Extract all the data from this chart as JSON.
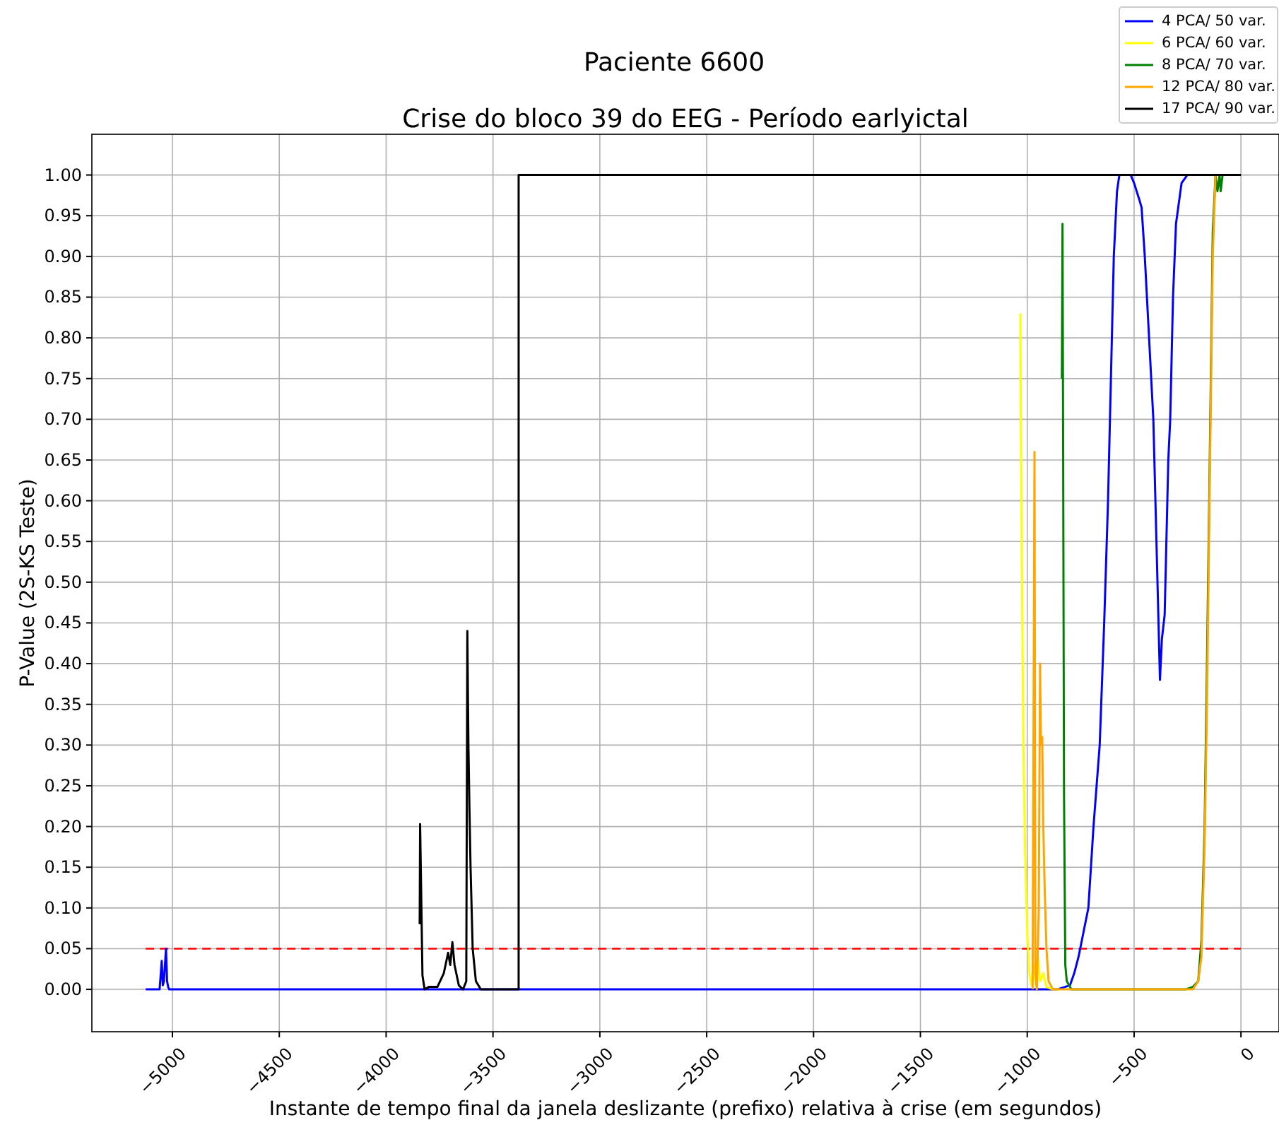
{
  "chart_data": {
    "type": "line",
    "title": "Paciente 6600",
    "subtitle": "Crise do bloco 39 do EEG  - Período earlyictal",
    "xlabel": "Instante de tempo final da janela deslizante (prefixo) relativa à crise (em segundos)",
    "ylabel": "P-Value (2S-KS Teste)",
    "xlim": [
      -5377,
      178
    ],
    "ylim": [
      -0.052,
      1.05
    ],
    "xticks": [
      {
        "value": -5000,
        "label": "−5000"
      },
      {
        "value": -4500,
        "label": "−4500"
      },
      {
        "value": -4000,
        "label": "−4000"
      },
      {
        "value": -3500,
        "label": "−3500"
      },
      {
        "value": -3000,
        "label": "−3000"
      },
      {
        "value": -2500,
        "label": "−2500"
      },
      {
        "value": -2000,
        "label": "−2000"
      },
      {
        "value": -1500,
        "label": "−1500"
      },
      {
        "value": -1000,
        "label": "−1000"
      },
      {
        "value": -500,
        "label": "−500"
      },
      {
        "value": 0,
        "label": "0"
      }
    ],
    "yticks": [
      {
        "value": 0,
        "label": "0.00"
      },
      {
        "value": 0.05,
        "label": "0.05"
      },
      {
        "value": 0.1,
        "label": "0.10"
      },
      {
        "value": 0.15,
        "label": "0.15"
      },
      {
        "value": 0.2,
        "label": "0.20"
      },
      {
        "value": 0.25,
        "label": "0.25"
      },
      {
        "value": 0.3,
        "label": "0.30"
      },
      {
        "value": 0.35,
        "label": "0.35"
      },
      {
        "value": 0.4,
        "label": "0.40"
      },
      {
        "value": 0.45,
        "label": "0.45"
      },
      {
        "value": 0.5,
        "label": "0.50"
      },
      {
        "value": 0.55,
        "label": "0.55"
      },
      {
        "value": 0.6,
        "label": "0.60"
      },
      {
        "value": 0.65,
        "label": "0.65"
      },
      {
        "value": 0.7,
        "label": "0.70"
      },
      {
        "value": 0.75,
        "label": "0.75"
      },
      {
        "value": 0.8,
        "label": "0.80"
      },
      {
        "value": 0.85,
        "label": "0.85"
      },
      {
        "value": 0.9,
        "label": "0.90"
      },
      {
        "value": 0.95,
        "label": "0.95"
      },
      {
        "value": 1,
        "label": "1.00"
      }
    ],
    "grid": true,
    "legend": "top right",
    "ref_lines": [
      {
        "axis": "y",
        "value": 0.05,
        "color": "#ff0000",
        "line_style": "dashed"
      }
    ],
    "series": [
      {
        "name": "4 PCA/ 50 var.",
        "color": "#0000ff",
        "x": [
          -5125,
          -5060,
          -5050,
          -5045,
          -5040,
          -5030,
          -5025,
          -5020,
          -5015,
          -5000,
          -860,
          -800,
          -780,
          -760,
          -714,
          -690,
          -661,
          -640,
          -622,
          -595,
          -580,
          -569,
          -516,
          -500,
          -476,
          -465,
          -450,
          -430,
          -410,
          -379,
          -370,
          -357,
          -340,
          -331,
          -318,
          -304,
          -278,
          -251,
          -240
        ],
        "values": [
          0,
          0,
          0.035,
          0.005,
          0.01,
          0.05,
          0.01,
          0.003,
          0,
          0,
          0,
          0.005,
          0.02,
          0.04,
          0.1,
          0.2,
          0.3,
          0.45,
          0.6,
          0.9,
          0.98,
          1,
          1,
          0.99,
          0.97,
          0.96,
          0.9,
          0.8,
          0.7,
          0.38,
          0.43,
          0.46,
          0.65,
          0.7,
          0.85,
          0.94,
          0.99,
          1,
          1
        ]
      },
      {
        "name": "6 PCA/ 60 var.",
        "color": "#ffff00",
        "x": [
          -1032,
          -1030,
          -1025,
          -1018,
          -1010,
          -1000,
          -990,
          -980,
          -970,
          -960,
          -950,
          -940,
          -925,
          -910,
          -880,
          -850
        ],
        "values": [
          0.83,
          0.7,
          0.52,
          0.3,
          0.17,
          0.07,
          0.02,
          0.005,
          0.03,
          0.005,
          0.04,
          0.01,
          0.02,
          0.003,
          0,
          0
        ]
      },
      {
        "name": "8 PCA/ 70 var.",
        "color": "#008000",
        "x": [
          -838,
          -835,
          -832,
          -828,
          -822,
          -815,
          -800,
          -794,
          -500,
          -260,
          -225,
          -200,
          -185,
          -170,
          -159,
          -146,
          -132,
          -119,
          -110,
          -100,
          -95,
          -86
        ],
        "values": [
          0.75,
          0.94,
          0.66,
          0.24,
          0.03,
          0.01,
          0.003,
          0,
          0,
          0,
          0.003,
          0.01,
          0.06,
          0.2,
          0.4,
          0.65,
          0.93,
          1,
          0.98,
          1,
          0.98,
          1
        ]
      },
      {
        "name": "12 PCA/ 80 var.",
        "color": "#ffa500",
        "x": [
          -975,
          -966,
          -962,
          -955,
          -946,
          -940,
          -936,
          -930,
          -925,
          -918,
          -910,
          -900,
          -880,
          -500,
          -225,
          -200,
          -185,
          -170,
          -159,
          -146,
          -132,
          -119,
          -100
        ],
        "values": [
          0,
          0.66,
          0.02,
          0,
          0.1,
          0.4,
          0.3,
          0.31,
          0.2,
          0.12,
          0.05,
          0.01,
          0,
          0,
          0,
          0.01,
          0.04,
          0.18,
          0.35,
          0.625,
          0.9,
          1,
          1
        ]
      },
      {
        "name": "17 PCA/ 90 var.",
        "color": "#000000",
        "x": [
          -3843,
          -3841,
          -3830,
          -3820,
          -3800,
          -3760,
          -3730,
          -3710,
          -3700,
          -3690,
          -3680,
          -3660,
          -3640,
          -3625,
          -3620,
          -3615,
          -3610,
          -3605,
          -3595,
          -3580,
          -3557,
          -3380,
          -3380,
          0
        ],
        "values": [
          0.08,
          0.203,
          0.017,
          0,
          0.003,
          0.003,
          0.02,
          0.045,
          0.03,
          0.058,
          0.03,
          0.005,
          0,
          0.01,
          0.44,
          0.3,
          0.22,
          0.15,
          0.05,
          0.01,
          0,
          0,
          1,
          1
        ]
      }
    ]
  }
}
